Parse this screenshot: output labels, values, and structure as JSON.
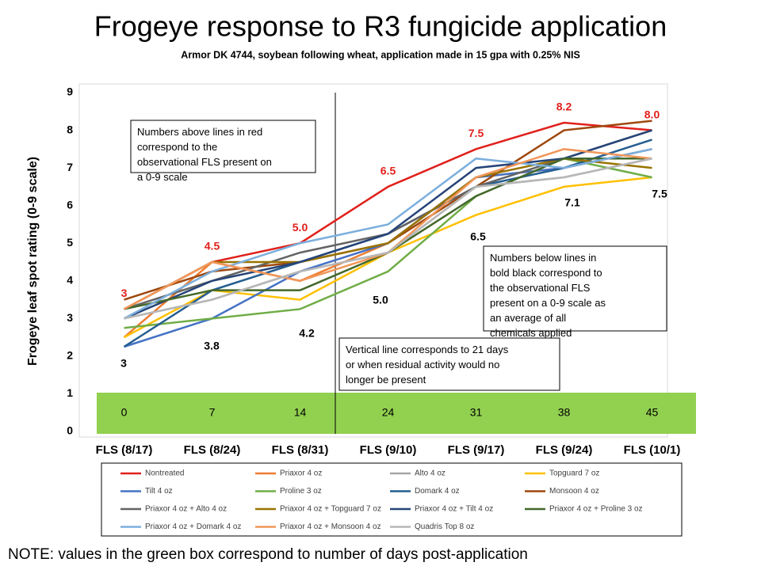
{
  "chart_data": {
    "type": "line",
    "title": "Frogeye response to R3 fungicide application",
    "subtitle": "Armor DK 4744, soybean following wheat, application made in 15 gpa with 0.25% NIS",
    "ylabel": "Frogeye leaf spot rating (0-9 scale)",
    "categories": [
      "FLS (8/17)",
      "FLS (8/24)",
      "FLS (8/31)",
      "FLS (9/10)",
      "FLS (9/17)",
      "FLS (9/24)",
      "FLS (10/1)"
    ],
    "days": [
      0,
      7,
      14,
      24,
      31,
      38,
      45
    ],
    "average_labels": [
      "3",
      "3.8",
      "4.2",
      "5.0",
      "6.5",
      "7.1",
      "7.5"
    ],
    "ylim": [
      0,
      9
    ],
    "yticks": [
      0,
      1,
      2,
      3,
      4,
      5,
      6,
      7,
      8,
      9
    ],
    "grid": false,
    "annotations": [
      "Numbers above lines in red correspond to the observational FLS present on a 0-9 scale",
      "Numbers below lines in bold black correspond to the observational FLS present on a 0-9 scale as an average of all chemicals applied",
      "Vertical line corresponds to 21 days or when residual activity would no longer be present"
    ],
    "note": "NOTE: values in the green box correspond to number of days post-application",
    "series": [
      {
        "name": "Nontreated",
        "color": "#e0201b",
        "values": [
          3.25,
          4.5,
          5.0,
          6.5,
          7.5,
          8.2,
          8.0
        ],
        "value_labels": [
          "3",
          "4.5",
          "5.0",
          "6.5",
          "7.5",
          "8.2",
          "8.0"
        ]
      },
      {
        "name": "Priaxor 4 oz",
        "color": "#ed7d31",
        "values": [
          2.5,
          4.5,
          4.0,
          5.0,
          6.75,
          7.0,
          7.5
        ]
      },
      {
        "name": "Alto 4 oz",
        "color": "#a5a5a5",
        "values": [
          3.0,
          3.5,
          4.25,
          4.75,
          6.5,
          6.75,
          7.25
        ]
      },
      {
        "name": "Topguard 7 oz",
        "color": "#ffc000",
        "values": [
          2.5,
          3.75,
          3.5,
          4.75,
          5.75,
          6.5,
          6.75
        ]
      },
      {
        "name": "Tilt 4 oz",
        "color": "#4472c4",
        "values": [
          2.25,
          3.0,
          4.25,
          5.0,
          6.75,
          7.0,
          7.5
        ]
      },
      {
        "name": "Proline 3 oz",
        "color": "#70ad47",
        "values": [
          2.75,
          3.0,
          3.25,
          4.25,
          6.25,
          7.25,
          6.75
        ]
      },
      {
        "name": "Domark 4 oz",
        "color": "#255e91",
        "values": [
          2.25,
          3.75,
          4.5,
          5.25,
          6.5,
          7.0,
          7.75
        ]
      },
      {
        "name": "Monsoon 4 oz",
        "color": "#9e480e",
        "values": [
          3.5,
          4.25,
          4.5,
          5.0,
          6.5,
          8.0,
          8.25
        ]
      },
      {
        "name": "Priaxor 4 oz + Alto 4 oz",
        "color": "#636363",
        "values": [
          3.25,
          4.0,
          4.75,
          5.25,
          6.5,
          7.25,
          8.0
        ]
      },
      {
        "name": "Priaxor 4 oz + Topguard 7 oz",
        "color": "#997300",
        "values": [
          3.25,
          4.5,
          4.5,
          5.0,
          6.75,
          7.25,
          7.0
        ]
      },
      {
        "name": "Priaxor 4 oz + Tilt 4 oz",
        "color": "#264478",
        "values": [
          3.0,
          4.0,
          4.5,
          5.25,
          7.0,
          7.25,
          8.0
        ]
      },
      {
        "name": "Priaxor 4 oz + Proline 3 oz",
        "color": "#43682b",
        "values": [
          3.25,
          3.75,
          3.75,
          4.75,
          6.25,
          7.25,
          7.25
        ]
      },
      {
        "name": "Priaxor 4 oz + Domark 4 oz",
        "color": "#7cafdd",
        "values": [
          3.0,
          4.25,
          5.0,
          5.5,
          7.25,
          7.0,
          7.5
        ]
      },
      {
        "name": "Priaxor 4 oz + Monsoon 4 oz",
        "color": "#f1975a",
        "values": [
          3.25,
          4.5,
          4.0,
          4.75,
          6.75,
          7.5,
          7.25
        ]
      },
      {
        "name": "Quadris Top 8 oz",
        "color": "#b7b7b7",
        "values": [
          3.0,
          3.5,
          4.25,
          4.75,
          6.5,
          6.75,
          7.25
        ]
      }
    ]
  }
}
